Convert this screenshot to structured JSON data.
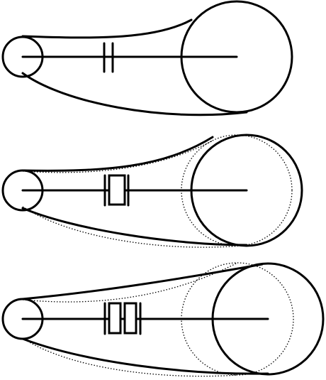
{
  "diagram": {
    "colors": {
      "line": "#000000",
      "background": "#ffffff"
    },
    "stages": [
      {
        "name": "stage-1",
        "spacer_blocks": 0,
        "reference_outline": false
      },
      {
        "name": "stage-2",
        "spacer_blocks": 1,
        "reference_outline": true
      },
      {
        "name": "stage-3",
        "spacer_blocks": 2,
        "reference_outline": true
      }
    ]
  }
}
